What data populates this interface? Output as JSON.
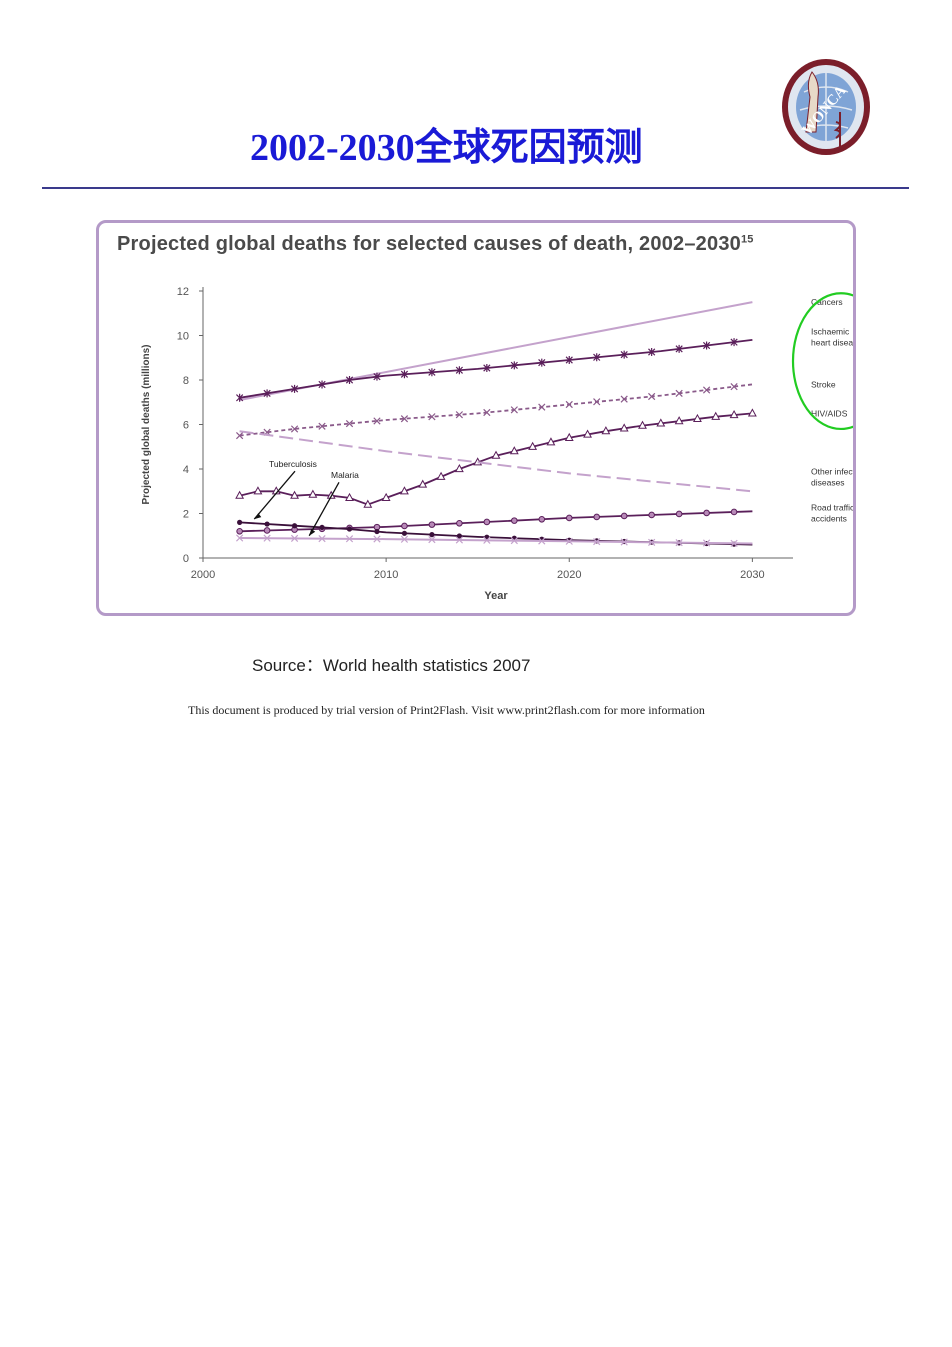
{
  "page": {
    "title": "2002-2030全球死因预测",
    "source": "Source：World health statistics 2007",
    "footer": "This document is produced by trial version of Print2Flash. Visit www.print2flash.com for more information",
    "logo_text": "WONCA"
  },
  "colors": {
    "title": "#1a1ad6",
    "rule": "#3a3a8c",
    "frame": "#b49ac8",
    "series_dark": "#5a1f5a",
    "series_light": "#c4a2cc",
    "highlight_circle": "#22cc22"
  },
  "chart_data": {
    "type": "line",
    "title": "Projected global deaths for selected causes of death, 2002–2030",
    "title_superscript": "15",
    "xlabel": "Year",
    "ylabel": "Projected global deaths (millions)",
    "xlim": [
      2000,
      2032
    ],
    "ylim": [
      0,
      12
    ],
    "x_ticks": [
      2000,
      2010,
      2020,
      2030
    ],
    "y_ticks": [
      0,
      2,
      4,
      6,
      8,
      10,
      12
    ],
    "grid": false,
    "series": [
      {
        "name": "Cancers",
        "x": [
          2002,
          2030
        ],
        "values": [
          7.1,
          11.5
        ],
        "color": "#c4a2cc",
        "marker": "none",
        "dash": "solid"
      },
      {
        "name": "Ischaemic heart disease",
        "x": [
          2002,
          2005,
          2008,
          2010,
          2015,
          2020,
          2025,
          2030
        ],
        "values": [
          7.2,
          7.6,
          8.0,
          8.2,
          8.5,
          8.9,
          9.3,
          9.8
        ],
        "color": "#5a1f5a",
        "marker": "star",
        "dash": "solid"
      },
      {
        "name": "Stroke",
        "x": [
          2002,
          2005,
          2010,
          2015,
          2020,
          2025,
          2030
        ],
        "values": [
          5.5,
          5.8,
          6.2,
          6.5,
          6.9,
          7.3,
          7.8
        ],
        "color": "#8a5a8a",
        "marker": "x",
        "dash": "dashed"
      },
      {
        "name": "HIV/AIDS",
        "x": [
          2002,
          2003,
          2004,
          2005,
          2006,
          2007,
          2008,
          2009,
          2010,
          2012,
          2014,
          2016,
          2018,
          2020,
          2022,
          2024,
          2026,
          2028,
          2030
        ],
        "values": [
          2.8,
          3.0,
          3.0,
          2.8,
          2.85,
          2.8,
          2.7,
          2.4,
          2.7,
          3.3,
          4.0,
          4.6,
          5.0,
          5.4,
          5.7,
          5.95,
          6.15,
          6.35,
          6.5
        ],
        "color": "#5a1f5a",
        "marker": "triangle",
        "dash": "solid"
      },
      {
        "name": "Other infectious diseases",
        "x": [
          2002,
          2010,
          2020,
          2030
        ],
        "values": [
          5.7,
          4.8,
          3.8,
          3.0
        ],
        "color": "#c4a2cc",
        "marker": "none",
        "dash": "dashed"
      },
      {
        "name": "Road traffic accidents",
        "x": [
          2002,
          2006,
          2010,
          2015,
          2020,
          2025,
          2030
        ],
        "values": [
          1.2,
          1.3,
          1.4,
          1.6,
          1.8,
          1.95,
          2.1
        ],
        "color": "#5a1f5a",
        "marker": "circle",
        "dash": "solid"
      },
      {
        "name": "Tuberculosis",
        "x": [
          2002,
          2005,
          2008,
          2010,
          2015,
          2020,
          2025,
          2030
        ],
        "values": [
          1.6,
          1.45,
          1.3,
          1.15,
          0.95,
          0.8,
          0.7,
          0.6
        ],
        "color": "#3a103a",
        "marker": "dot",
        "dash": "solid"
      },
      {
        "name": "Malaria",
        "x": [
          2002,
          2010,
          2020,
          2030
        ],
        "values": [
          0.9,
          0.85,
          0.75,
          0.65
        ],
        "color": "#c4a2cc",
        "marker": "x",
        "dash": "solid"
      }
    ],
    "legend_labels": [
      {
        "lines": [
          "Cancers"
        ],
        "series": "Cancers"
      },
      {
        "lines": [
          "Ischaemic",
          "heart disease"
        ],
        "series": "Ischaemic heart disease"
      },
      {
        "lines": [
          "Stroke"
        ],
        "series": "Stroke"
      },
      {
        "lines": [
          "HIV/AIDS"
        ],
        "series": "HIV/AIDS"
      },
      {
        "lines": [
          "Other infectious",
          "diseases"
        ],
        "series": "Other infectious diseases"
      },
      {
        "lines": [
          "Road traffic",
          "accidents"
        ],
        "series": "Road traffic accidents"
      }
    ],
    "annotations": [
      {
        "text": "Tuberculosis",
        "points_to_series": "Tuberculosis"
      },
      {
        "text": "Malaria",
        "points_to_series": "Malaria"
      }
    ],
    "highlight": "Cancers, Ischaemic heart disease, Stroke and HIV/AIDS labels circled in green"
  }
}
